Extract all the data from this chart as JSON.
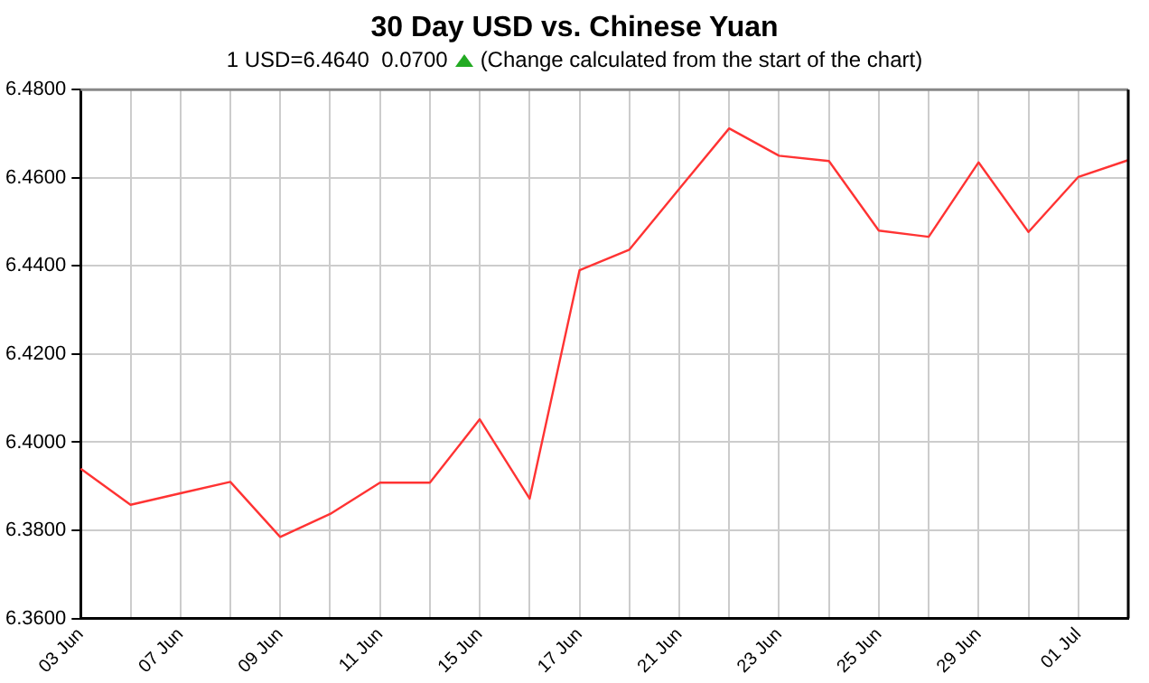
{
  "chart_data": {
    "type": "line",
    "title": "30 Day USD vs. Chinese Yuan",
    "subtitle": "1 USD=6.4640  0.0700",
    "annotations": [
      "(Change calculated from the start of the chart)"
    ],
    "categories": [
      "03 Jun",
      null,
      "07 Jun",
      null,
      "09 Jun",
      null,
      "11 Jun",
      null,
      "15 Jun",
      null,
      "17 Jun",
      null,
      "21 Jun",
      null,
      "23 Jun",
      null,
      "25 Jun",
      null,
      "29 Jun",
      null,
      "01 Jul",
      null
    ],
    "series": [
      {
        "color": "#ff3333",
        "values": [
          6.394,
          6.3858,
          6.3884,
          6.391,
          6.3785,
          6.3837,
          6.3908,
          6.3908,
          6.4052,
          6.3872,
          6.439,
          6.4437,
          6.4575,
          6.4712,
          6.465,
          6.4638,
          6.448,
          6.4466,
          6.4635,
          6.4477,
          6.4602,
          6.464
        ]
      }
    ],
    "ylim": [
      6.36,
      6.48
    ],
    "yticks": [
      {
        "value": 6.36,
        "label": "6.3600"
      },
      {
        "value": 6.38,
        "label": "6.3800"
      },
      {
        "value": 6.4,
        "label": "6.4000"
      },
      {
        "value": 6.42,
        "label": "6.4200"
      },
      {
        "value": 6.44,
        "label": "6.4400"
      },
      {
        "value": 6.46,
        "label": "6.4600"
      },
      {
        "value": 6.48,
        "label": "6.4800"
      }
    ],
    "grid": true,
    "legend": false,
    "marker": "none",
    "line_style": "solid"
  }
}
